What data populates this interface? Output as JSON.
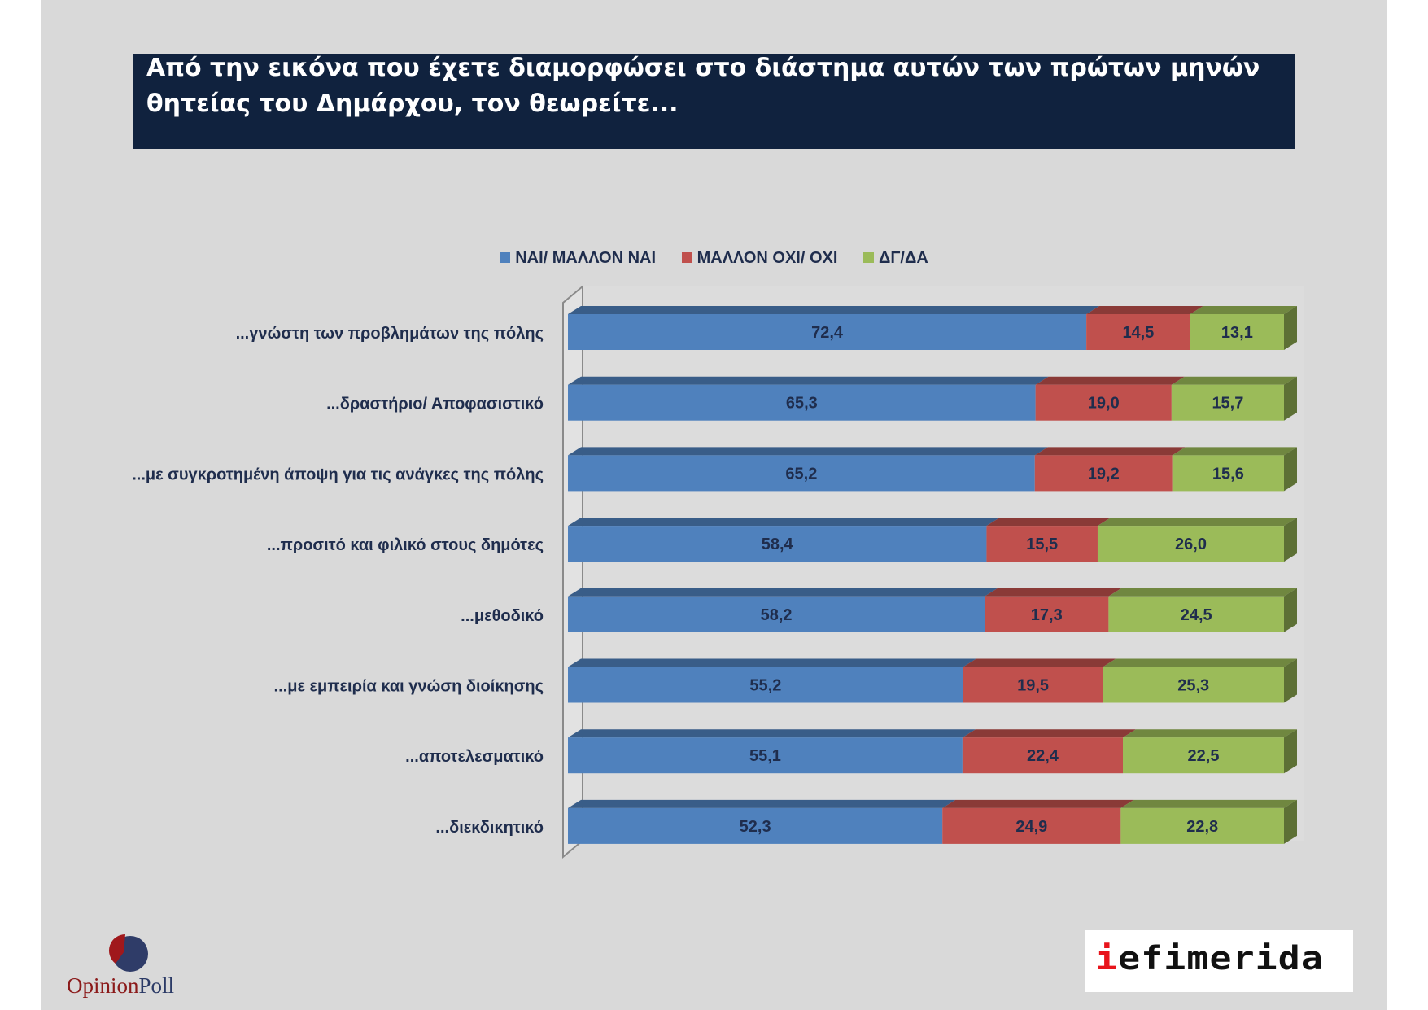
{
  "title": {
    "line1": "Από την εικόνα που έχετε διαμορφώσει στο διάστημα αυτών των πρώτων μηνών",
    "line2": "θητείας του Δημάρχου, τον θεωρείτε..."
  },
  "colors": {
    "background": "#d9d9d9",
    "title_bg": "#10223e",
    "yes": "#4f81bd",
    "no": "#c0504d",
    "dk": "#9bbb59"
  },
  "logos": {
    "opinionpoll": {
      "part1": "Opinion",
      "part2": "Poll"
    },
    "iefimerida": {
      "part1": "i",
      "part2": "efimerida"
    }
  },
  "chart_data": {
    "type": "bar",
    "orientation": "horizontal",
    "stacked": true,
    "percent_stacked": true,
    "legend_position": "top",
    "grid": false,
    "categories": [
      "...γνώστη των προβλημάτων της πόλης",
      "...δραστήριο/ Αποφασιστικό",
      "...με συγκροτημένη άποψη για τις ανάγκες της πόλης",
      "...προσιτό και φιλικό στους δημότες",
      "...μεθοδικό",
      "...με εμπειρία και γνώση διοίκησης",
      "...αποτελεσματικό",
      "...διεκδικητικό"
    ],
    "series": [
      {
        "name": "ΝΑΙ/ ΜΑΛΛΟΝ ΝΑΙ",
        "color": "#4f81bd",
        "values": [
          72.4,
          65.3,
          65.2,
          58.4,
          58.2,
          55.2,
          55.1,
          52.3
        ],
        "labels": [
          "72,4",
          "65,3",
          "65,2",
          "58,4",
          "58,2",
          "55,2",
          "55,1",
          "52,3"
        ]
      },
      {
        "name": "ΜΑΛΛΟΝ ΟΧΙ/ ΟΧΙ",
        "color": "#c0504d",
        "values": [
          14.5,
          19.0,
          19.2,
          15.5,
          17.3,
          19.5,
          22.4,
          24.9
        ],
        "labels": [
          "14,5",
          "19,0",
          "19,2",
          "15,5",
          "17,3",
          "19,5",
          "22,4",
          "24,9"
        ]
      },
      {
        "name": "ΔΓ/ΔΑ",
        "color": "#9bbb59",
        "values": [
          13.1,
          15.7,
          15.6,
          26.0,
          24.5,
          25.3,
          22.5,
          22.8
        ],
        "labels": [
          "13,1",
          "15,7",
          "15,6",
          "26,0",
          "24,5",
          "25,3",
          "22,5",
          "22,8"
        ]
      }
    ]
  }
}
